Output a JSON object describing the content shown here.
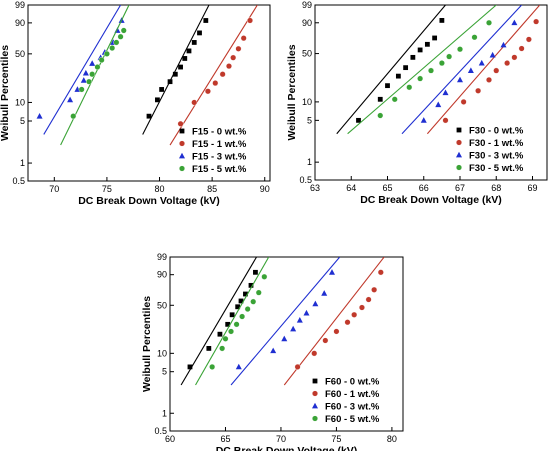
{
  "chart_data": [
    {
      "id": "F15",
      "type": "scatter",
      "title": "",
      "xlabel": "DC Break Down Voltage (kV)",
      "ylabel": "Weibull Percentiles",
      "xlim": [
        67.5,
        90.5
      ],
      "x_ticks": [
        70,
        75,
        80,
        85,
        90
      ],
      "x_tick_labels": [
        "70",
        "75",
        "80",
        "85",
        "90"
      ],
      "y_scale": "weibull",
      "ylim": [
        0.5,
        99
      ],
      "y_ticks": [
        0.5,
        1,
        5,
        10,
        50,
        90,
        99
      ],
      "y_tick_labels": [
        "0.5",
        "1",
        "5",
        "10",
        "50",
        "90",
        "99"
      ],
      "legend_position": "bottom-right",
      "series": [
        {
          "name": "F15 - 0 wt.%",
          "marker": "square",
          "color": "#000000",
          "x": [
            79.0,
            79.8,
            80.2,
            81.0,
            81.5,
            82.0,
            82.4,
            82.8,
            83.3,
            83.8,
            84.4
          ],
          "y": [
            6,
            11,
            16,
            21,
            27,
            34,
            44,
            54,
            66,
            79,
            92
          ],
          "fit": [
            [
              78.4,
              3
            ],
            [
              84.7,
              99
            ]
          ]
        },
        {
          "name": "F15 - 1 wt.%",
          "marker": "circle",
          "color": "#c0392b",
          "x": [
            82.0,
            83.3,
            84.6,
            85.3,
            86.0,
            86.6,
            87.0,
            87.5,
            88.0,
            88.6
          ],
          "y": [
            4.5,
            10,
            15,
            20,
            27,
            35,
            45,
            57,
            72,
            92
          ],
          "fit": [
            [
              81.0,
              2
            ],
            [
              89.3,
              99
            ]
          ]
        },
        {
          "name": "F15 - 3 wt.%",
          "marker": "triangle",
          "color": "#1f2fd1",
          "x": [
            68.6,
            71.5,
            72.2,
            72.8,
            73.0,
            73.6,
            74.4,
            74.8,
            75.6,
            76.0,
            76.4
          ],
          "y": [
            6,
            11,
            16,
            22,
            28,
            38,
            45,
            52,
            66,
            82,
            92
          ],
          "fit": [
            [
              69.0,
              3
            ],
            [
              76.3,
              99
            ]
          ]
        },
        {
          "name": "F15 - 5 wt.%",
          "marker": "circle",
          "color": "#3aa336",
          "x": [
            71.8,
            72.6,
            73.3,
            73.6,
            74.1,
            74.5,
            75.0,
            75.5,
            75.9,
            76.3,
            76.6
          ],
          "y": [
            6,
            16,
            21,
            27,
            34,
            42,
            50,
            58,
            66,
            74,
            82
          ],
          "fit": [
            [
              70.6,
              2
            ],
            [
              77.1,
              99
            ]
          ]
        }
      ]
    },
    {
      "id": "F30",
      "type": "scatter",
      "title": "",
      "xlabel": "DC Break Down Voltage (kV)",
      "ylabel": "Weibull Percentiles",
      "xlim": [
        63,
        69.4
      ],
      "x_ticks": [
        63,
        64,
        65,
        66,
        67,
        68,
        69
      ],
      "x_tick_labels": [
        "63",
        "64",
        "65",
        "66",
        "67",
        "68",
        "69"
      ],
      "y_scale": "weibull",
      "ylim": [
        0.5,
        99
      ],
      "y_ticks": [
        0.5,
        1,
        5,
        10,
        50,
        90,
        99
      ],
      "y_tick_labels": [
        "0.5",
        "1",
        "5",
        "10",
        "50",
        "90",
        "99"
      ],
      "legend_position": "bottom-right",
      "series": [
        {
          "name": "F30 - 0 wt.%",
          "marker": "square",
          "color": "#000000",
          "x": [
            64.2,
            64.8,
            65.0,
            65.3,
            65.5,
            65.7,
            65.9,
            66.1,
            66.3,
            66.5
          ],
          "y": [
            5,
            11,
            18,
            25,
            33,
            45,
            55,
            63,
            72,
            92
          ],
          "fit": [
            [
              63.6,
              3
            ],
            [
              66.6,
              99
            ]
          ]
        },
        {
          "name": "F30 - 1 wt.%",
          "marker": "circle",
          "color": "#c0392b",
          "x": [
            66.6,
            67.1,
            67.5,
            67.8,
            68.0,
            68.3,
            68.5,
            68.7,
            68.9,
            69.1
          ],
          "y": [
            5,
            10,
            15,
            22,
            30,
            38,
            45,
            57,
            70,
            91
          ],
          "fit": [
            [
              66.1,
              3
            ],
            [
              69.2,
              99
            ]
          ]
        },
        {
          "name": "F30 - 3 wt.%",
          "marker": "triangle",
          "color": "#1f2fd1",
          "x": [
            66.0,
            66.4,
            66.6,
            67.0,
            67.3,
            67.6,
            67.9,
            68.2,
            68.5
          ],
          "y": [
            5,
            9,
            14,
            22,
            30,
            38,
            48,
            62,
            90
          ],
          "fit": [
            [
              65.4,
              3
            ],
            [
              68.7,
              99
            ]
          ]
        },
        {
          "name": "F30 - 5 wt.%",
          "marker": "circle",
          "color": "#3aa336",
          "x": [
            64.8,
            65.2,
            65.6,
            65.9,
            66.2,
            66.5,
            66.7,
            67.0,
            67.4,
            67.8
          ],
          "y": [
            6,
            11,
            17,
            23,
            30,
            38,
            46,
            56,
            73,
            90
          ],
          "fit": [
            [
              63.9,
              3
            ],
            [
              68.0,
              99
            ]
          ]
        }
      ]
    },
    {
      "id": "F60",
      "type": "scatter",
      "title": "",
      "xlabel": "DC Break Down Voltage (kV)",
      "ylabel": "Weibull Percentiles",
      "xlim": [
        60,
        81
      ],
      "x_ticks": [
        60,
        65,
        70,
        75,
        80
      ],
      "x_tick_labels": [
        "60",
        "65",
        "70",
        "75",
        "80"
      ],
      "y_scale": "weibull",
      "ylim": [
        0.5,
        99
      ],
      "y_ticks": [
        0.5,
        1,
        5,
        10,
        50,
        90,
        99
      ],
      "y_tick_labels": [
        "0.5",
        "1",
        "5",
        "10",
        "50",
        "90",
        "99"
      ],
      "legend_position": "bottom-right",
      "series": [
        {
          "name": "F60 - 0 wt.%",
          "marker": "square",
          "color": "#000000",
          "x": [
            61.8,
            63.5,
            64.5,
            65.2,
            65.6,
            66.1,
            66.4,
            66.8,
            67.3,
            67.7
          ],
          "y": [
            6,
            12,
            20,
            28,
            38,
            48,
            56,
            66,
            78,
            92
          ],
          "fit": [
            [
              61.0,
              3
            ],
            [
              67.8,
              99
            ]
          ]
        },
        {
          "name": "F60 - 1 wt.%",
          "marker": "circle",
          "color": "#c0392b",
          "x": [
            71.5,
            73.0,
            74.0,
            75.0,
            76.0,
            76.6,
            77.3,
            77.9,
            78.4,
            79.0
          ],
          "y": [
            6,
            10,
            16,
            22,
            30,
            38,
            47,
            58,
            72,
            92
          ],
          "fit": [
            [
              70.3,
              3
            ],
            [
              79.3,
              99
            ]
          ]
        },
        {
          "name": "F60 - 3 wt.%",
          "marker": "triangle",
          "color": "#1f2fd1",
          "x": [
            66.2,
            69.3,
            70.3,
            71.1,
            71.7,
            72.3,
            73.1,
            73.9,
            74.6
          ],
          "y": [
            6,
            11,
            17,
            24,
            32,
            40,
            52,
            67,
            92
          ],
          "fit": [
            [
              65.5,
              3
            ],
            [
              75.3,
              99
            ]
          ]
        },
        {
          "name": "F60 - 5 wt.%",
          "marker": "circle",
          "color": "#3aa336",
          "x": [
            63.8,
            64.7,
            65.0,
            65.5,
            66.0,
            66.5,
            67.0,
            67.5,
            68.0,
            68.5
          ],
          "y": [
            6,
            12,
            17,
            22,
            28,
            36,
            45,
            55,
            68,
            88
          ],
          "fit": [
            [
              62.3,
              3
            ],
            [
              68.9,
              99
            ]
          ]
        }
      ]
    }
  ]
}
